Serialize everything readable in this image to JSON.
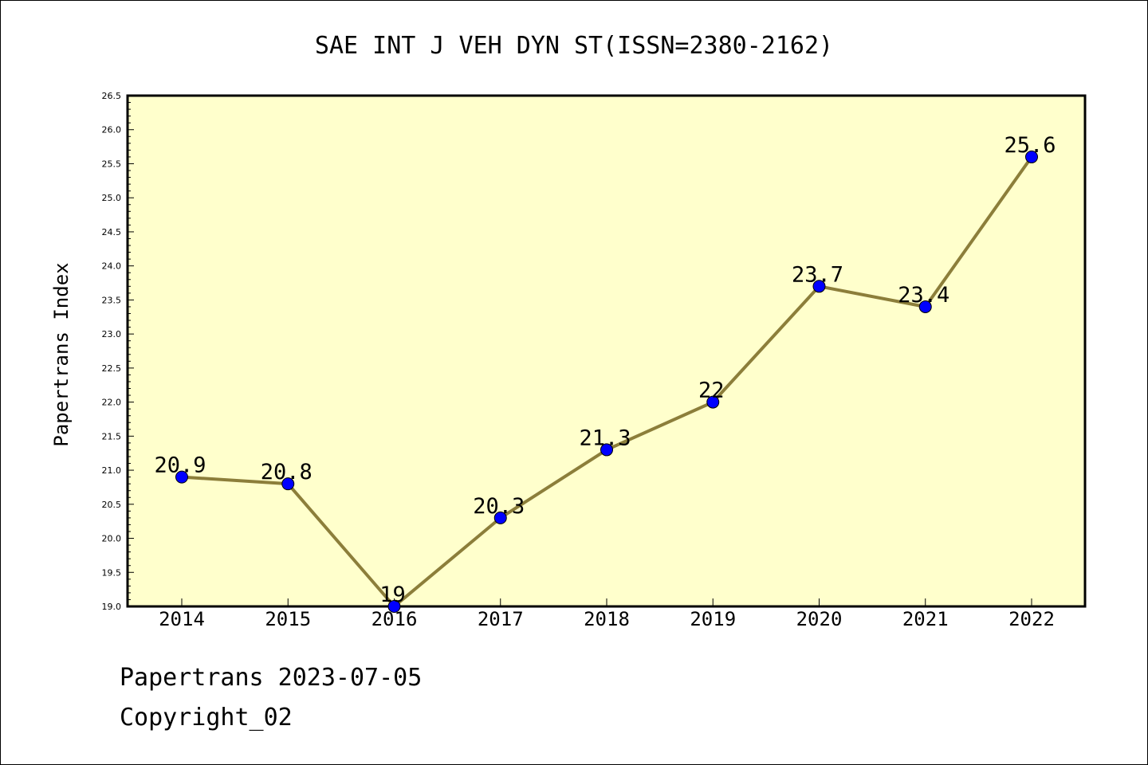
{
  "chart_data": {
    "type": "line",
    "title": "SAE INT J VEH DYN ST(ISSN=2380-2162)",
    "ylabel": "Papertrans Index",
    "xlabel": "",
    "x": [
      "2014",
      "2015",
      "2016",
      "2017",
      "2018",
      "2019",
      "2020",
      "2021",
      "2022"
    ],
    "values": [
      20.9,
      20.8,
      19.0,
      20.3,
      21.3,
      22.0,
      23.7,
      23.4,
      25.6
    ],
    "data_labels": [
      "20.9",
      "20.8",
      "19",
      "20.3",
      "21.3",
      "22",
      "23.7",
      "23.4",
      "25.6"
    ],
    "ylim": [
      19.0,
      26.5
    ],
    "yticks": [
      "19.0",
      "19.5",
      "20.0",
      "20.5",
      "21.0",
      "21.5",
      "22.0",
      "22.5",
      "23.0",
      "23.5",
      "24.0",
      "24.5",
      "25.0",
      "25.5",
      "26.0",
      "26.5"
    ],
    "grid": false,
    "colors": {
      "plot_background": "#ffffcc",
      "line": "#8c7e3a",
      "marker": "#0000ff"
    }
  },
  "footer": {
    "line1": "Papertrans 2023-07-05",
    "line2": "Copyright_02"
  }
}
